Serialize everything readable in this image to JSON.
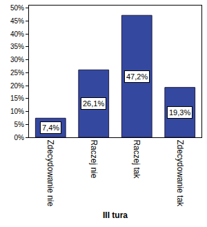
{
  "chart_data": {
    "type": "bar",
    "x_label": "III tura",
    "categories": [
      "Zdecydowanie nie",
      "Raczej nie",
      "Raczej tak",
      "Zdecydowanie tak"
    ],
    "values": [
      7.4,
      26.1,
      47.2,
      19.3
    ],
    "value_labels": [
      "7,4%",
      "26,1%",
      "47,2%",
      "19,3%"
    ],
    "data_labels": true,
    "color": "#3548a0",
    "ylim": [
      0,
      51
    ],
    "yticks": [
      {
        "value": 0,
        "label": "0%"
      },
      {
        "value": 5,
        "label": "5%"
      },
      {
        "value": 10,
        "label": "10%"
      },
      {
        "value": 15,
        "label": "15%"
      },
      {
        "value": 20,
        "label": "20%"
      },
      {
        "value": 25,
        "label": "25%"
      },
      {
        "value": 30,
        "label": "30%"
      },
      {
        "value": 35,
        "label": "35%"
      },
      {
        "value": 40,
        "label": "40%"
      },
      {
        "value": 45,
        "label": "45%"
      },
      {
        "value": 50,
        "label": "50%"
      }
    ],
    "grid": false
  }
}
